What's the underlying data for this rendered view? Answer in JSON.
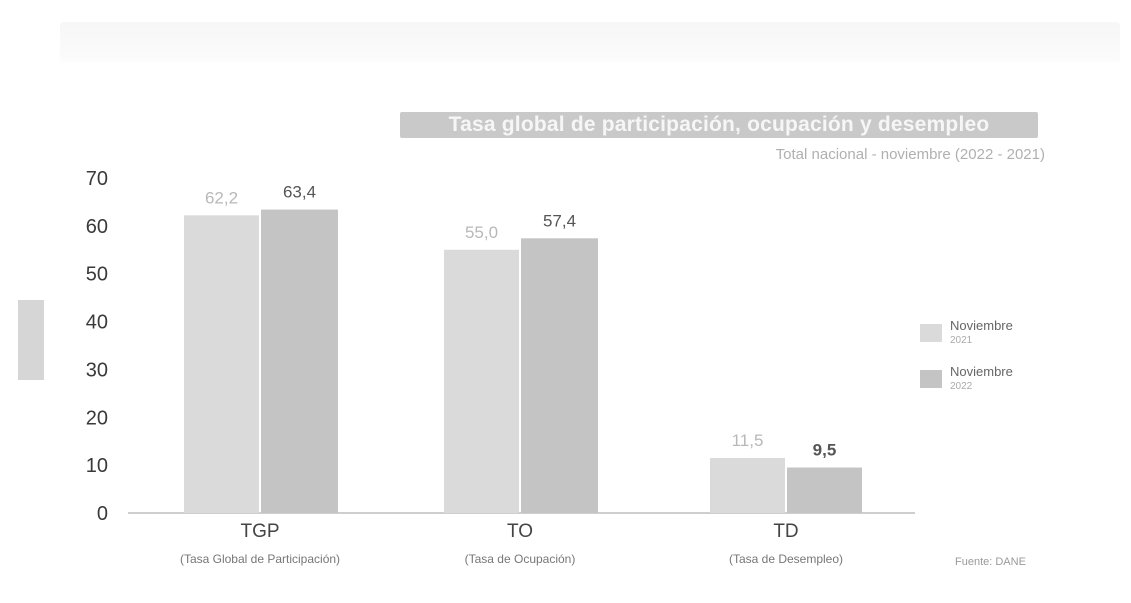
{
  "chart_data": {
    "type": "bar",
    "title": "Tasa global de participación, ocupación y desempleo",
    "subtitle": "Total nacional - noviembre (2022 - 2021)",
    "ylabel": "",
    "ylim": [
      0,
      70
    ],
    "yticks": [
      0,
      10,
      20,
      30,
      40,
      50,
      60,
      70
    ],
    "categories": [
      "TGP",
      "TO",
      "TD"
    ],
    "category_descriptions": [
      "(Tasa Global de Participación)",
      "(Tasa de Ocupación)",
      "(Tasa de Desempleo)"
    ],
    "series": [
      {
        "name": "Noviembre 2021",
        "name_line1": "Noviembre",
        "name_line2": "2021",
        "values": [
          62.2,
          55.0,
          11.5
        ],
        "labels": [
          "62,2",
          "55,0",
          "11,5"
        ],
        "color": "#dadada"
      },
      {
        "name": "Noviembre 2022",
        "name_line1": "Noviembre",
        "name_line2": "2022",
        "values": [
          63.4,
          57.4,
          9.5
        ],
        "labels": [
          "63,4",
          "57,4",
          "9,5"
        ],
        "color": "#c4c4c4"
      }
    ],
    "legend_position": "right",
    "grid": false,
    "source": "Fuente: DANE"
  }
}
